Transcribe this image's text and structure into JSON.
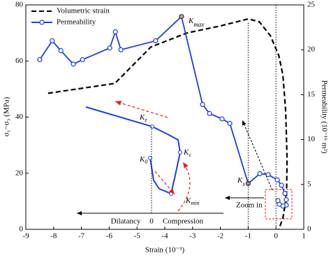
{
  "chart_data": {
    "type": "line",
    "xlabel": "Strain (10⁻³)",
    "ylabel": "σ₁−σ₃ (MPa)",
    "y2label": "Permeability (10⁻¹⁶ m²)",
    "xlim": [
      -9,
      1
    ],
    "xticks": [
      -9,
      -8,
      -7,
      -6,
      -5,
      -4,
      -3,
      -2,
      -1,
      0,
      1
    ],
    "ylim": [
      0,
      80
    ],
    "yticks": [
      0,
      20,
      40,
      60,
      80
    ],
    "y2lim": [
      0,
      25
    ],
    "y2ticks": [
      0,
      5,
      10,
      15,
      20,
      25
    ],
    "legend": "upper left",
    "series": [
      {
        "name": "Volumetric strain",
        "color": "#000000",
        "dash": true,
        "markers": false,
        "x": [
          -8.2,
          -5.8,
          -4.5,
          -3.2,
          -2.0,
          -1.0,
          -0.6,
          -0.2,
          0.1,
          0.25,
          0.35,
          0.4,
          0.38,
          0.25,
          0.1
        ],
        "values": [
          48.5,
          52,
          65,
          70,
          72.5,
          75,
          74,
          69,
          62,
          55,
          42,
          25,
          12,
          4,
          0
        ]
      },
      {
        "name": "Permeability",
        "color": "#1f3fd6",
        "axis": "y2",
        "dash": false,
        "markers": true,
        "x": [
          -8.5,
          -8.05,
          -7.74,
          -7.29,
          -6.96,
          -5.98,
          -5.78,
          -5.58,
          -4.33,
          -3.4,
          -2.64,
          -2.39,
          -1.94,
          -1.66,
          -1.0,
          -0.58,
          -0.28,
          0.05,
          0.2,
          0.32,
          0.37,
          0.37,
          0.25,
          0.12,
          0.07
        ],
        "values": [
          18.9,
          21.0,
          19.9,
          18.4,
          18.9,
          20.2,
          22.0,
          20.0,
          21.0,
          23.7,
          13.9,
          12.9,
          12.3,
          11.8,
          5.1,
          6.2,
          6.1,
          5.5,
          4.9,
          4.0,
          3.3,
          2.7,
          2.6,
          2.8,
          3.2
        ]
      }
    ],
    "annotations": {
      "kmax": {
        "text": "K",
        "sub": "max"
      },
      "ks": {
        "text": "K",
        "sub": "s"
      },
      "kz": {
        "text": "K",
        "sub": "z"
      },
      "k0": {
        "text": "K",
        "sub": "0"
      },
      "kc": {
        "text": "K",
        "sub": "c"
      },
      "kmin": {
        "text": "K",
        "sub": "min"
      },
      "zoom": "Zoom in",
      "dilatancy": "Dilatancy",
      "zero": "0",
      "compression": "Compression"
    }
  }
}
